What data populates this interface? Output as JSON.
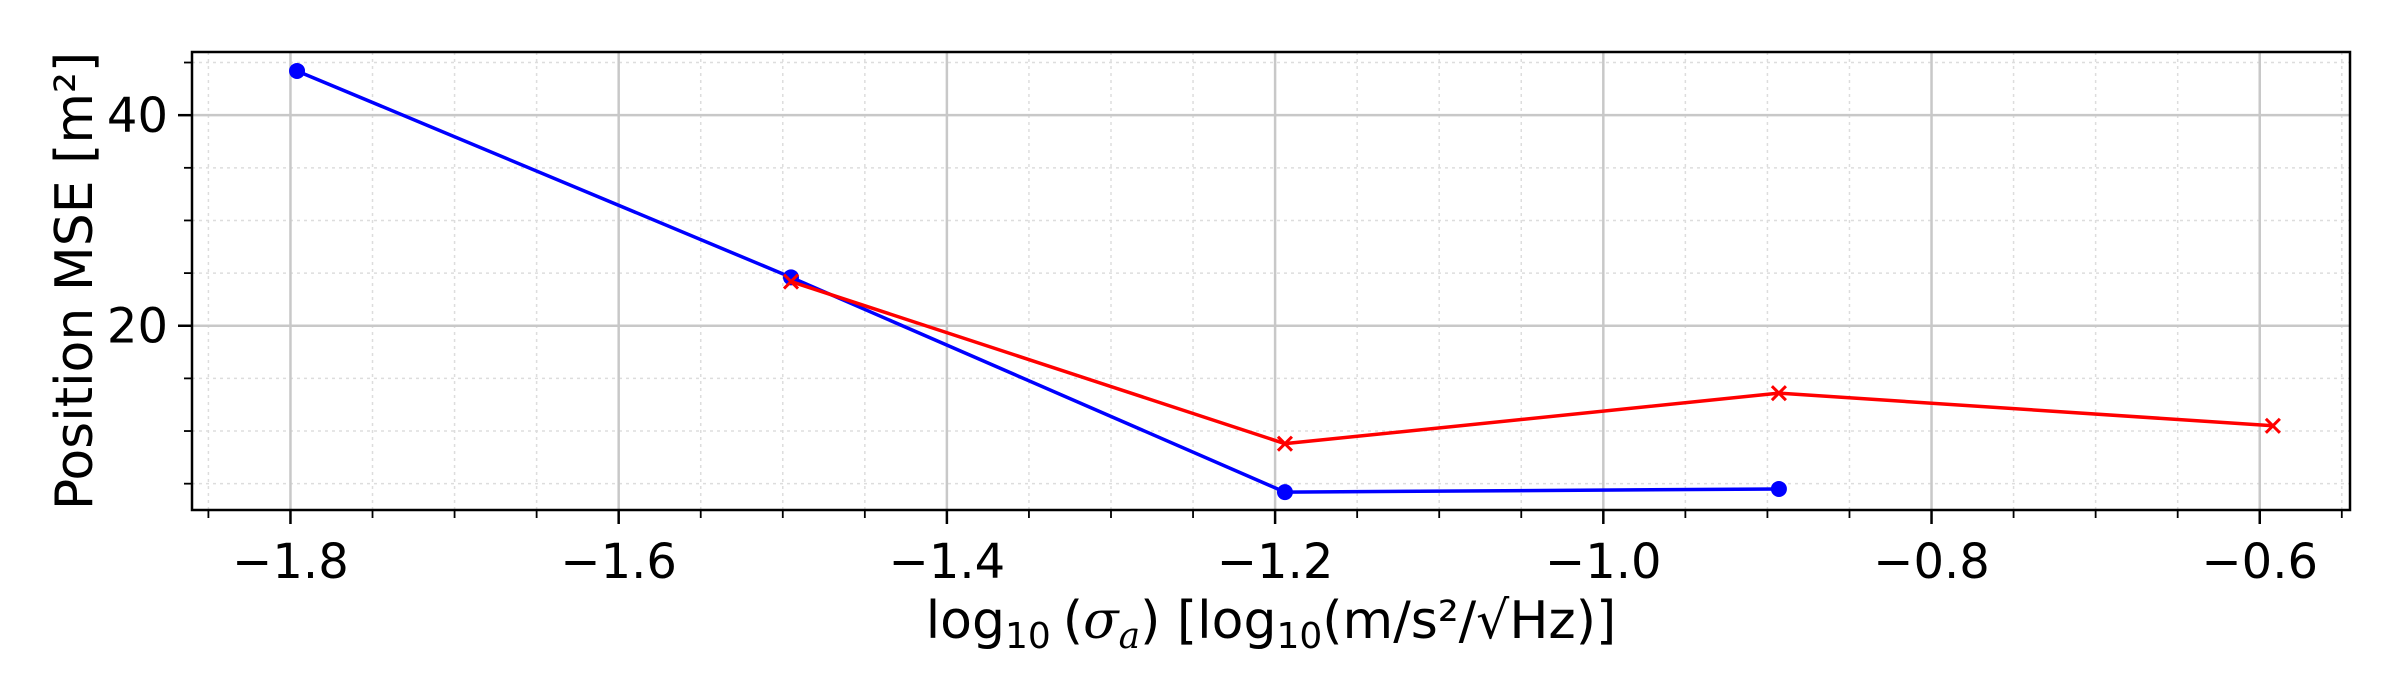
{
  "chart_data": {
    "type": "line",
    "xlabel": {
      "prefix": "log",
      "prefix_sub": "10",
      "sigma": "σ",
      "sigma_sub": "a",
      "unit_open": " [log",
      "unit_sub": "10",
      "unit_rest": "(m/s²/√Hz)]"
    },
    "ylabel": "Position MSE [m²]",
    "xlim": [
      -1.86,
      -0.545
    ],
    "ylim": [
      2.5,
      46.0
    ],
    "xticks": [
      -1.8,
      -1.6,
      -1.4,
      -1.2,
      -1.0,
      -0.8,
      -0.6
    ],
    "xtick_labels": [
      "−1.8",
      "−1.6",
      "−1.4",
      "−1.2",
      "−1.0",
      "−0.8",
      "−0.6"
    ],
    "xminor_step": 0.05,
    "yticks": [
      20,
      40
    ],
    "ytick_labels": [
      "20",
      "40"
    ],
    "yminor": [
      5,
      10,
      15,
      25,
      30,
      35,
      45
    ],
    "grid": true,
    "series": [
      {
        "color": "#0000ff",
        "marker": "circle",
        "x": [
          -1.796,
          -1.495,
          -1.194,
          -0.893
        ],
        "y": [
          44.2,
          24.6,
          4.2,
          4.5
        ]
      },
      {
        "color": "#ff0000",
        "marker": "x",
        "x": [
          -1.495,
          -1.194,
          -0.893,
          -0.592
        ],
        "y": [
          24.2,
          8.8,
          13.6,
          10.5
        ]
      }
    ]
  }
}
